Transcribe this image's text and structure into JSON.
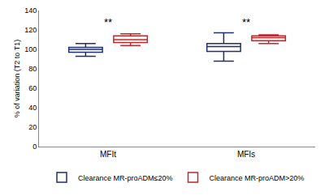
{
  "chart_data": {
    "type": "box",
    "y_label": "% of variation (T2 to T1)",
    "categories": [
      "MFIt",
      "MFIs"
    ],
    "series": [
      {
        "name": "Clearance MR-proADM≤20%",
        "color": "#1f2f6b",
        "lowerfence": [
          93,
          88
        ],
        "q1": [
          97,
          98
        ],
        "median": [
          100,
          103
        ],
        "q3": [
          102,
          106
        ],
        "upperfence": [
          106,
          117
        ]
      },
      {
        "name": "Clearance MR-proADM>20%",
        "color": "#c0292b",
        "lowerfence": [
          104,
          106
        ],
        "q1": [
          107,
          109
        ],
        "median": [
          110,
          112
        ],
        "q3": [
          114,
          114
        ],
        "upperfence": [
          116,
          115
        ]
      }
    ],
    "ylim": [
      0,
      140
    ],
    "yticks": [
      0,
      20,
      40,
      60,
      80,
      100,
      120,
      140
    ],
    "grid": false,
    "legend": "bottom",
    "annotations": [
      {
        "x": "MFIt",
        "y": 128,
        "text": "**"
      },
      {
        "x": "MFIs",
        "y": 128,
        "text": "**"
      }
    ]
  }
}
